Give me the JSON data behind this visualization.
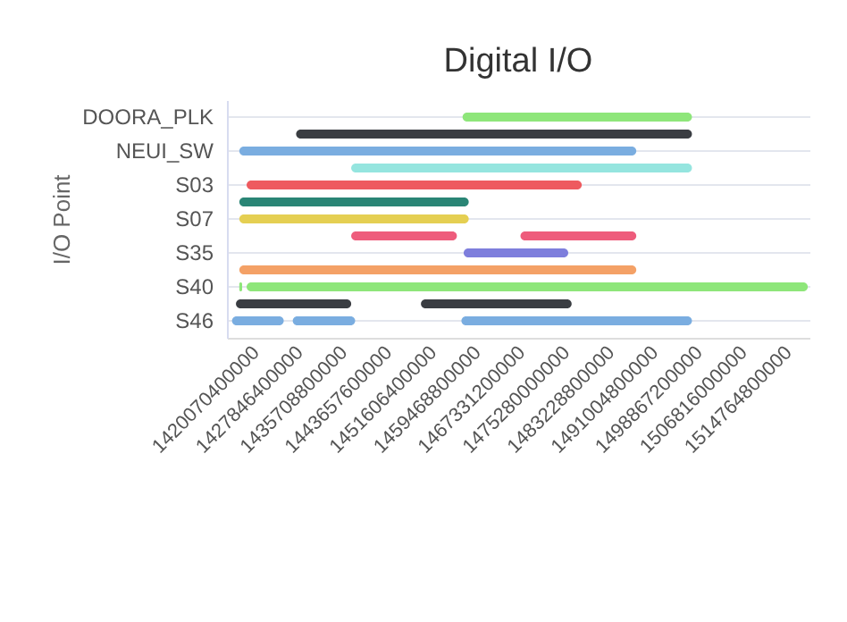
{
  "chart_data": {
    "type": "bar",
    "orientation": "horizontal",
    "title": "Digital I/O",
    "ylabel": "I/O Point",
    "categories": [
      "DOORA_PLK",
      null,
      "NEUI_SW",
      null,
      "S03",
      null,
      "S07",
      null,
      "S35",
      null,
      "S40",
      null,
      "S46"
    ],
    "series": [
      {
        "base": [
          1458200000000,
          1428600000000,
          1418500000000,
          1438400000000,
          1419800000000,
          1418500000000,
          1418500000000,
          1438400000000,
          1458400000000,
          1418500000000,
          1418500000000,
          1417900000000,
          1417200000000
        ],
        "values": [
          40800000000,
          70400000000,
          70600000000,
          60600000000,
          59600000000,
          40800000000,
          40800000000,
          18800000000,
          18600000000,
          70600000000,
          500000000,
          20500000000,
          9200000000
        ],
        "colors": [
          "#8ee67a",
          "#3a3d42",
          "#7aade0",
          "#95e5df",
          "#ee5a5f",
          "#2a8575",
          "#e5cf52",
          "#ee5c7c",
          "#7e7edc",
          "#f4a166",
          "#8ee67a",
          "#3a3d42",
          "#7aade0"
        ]
      },
      {
        "base": [
          null,
          null,
          null,
          null,
          null,
          null,
          null,
          1468500000000,
          null,
          null,
          1419800000000,
          1450800000000,
          1428000000000
        ],
        "values": [
          null,
          null,
          null,
          null,
          null,
          null,
          null,
          20600000000,
          null,
          null,
          99800000000,
          26800000000,
          11100000000
        ],
        "colors": [
          "#8ee67a",
          "#3a3d42",
          "#7aade0",
          "#95e5df",
          "#ee5a5f",
          "#2a8575",
          "#e5cf52",
          "#ee5c7c",
          "#7e7edc",
          "#f4a166",
          "#8ee67a",
          "#3a3d42",
          "#7aade0"
        ]
      },
      {
        "base": [
          null,
          null,
          null,
          null,
          null,
          null,
          null,
          null,
          null,
          null,
          null,
          null,
          1458000000000
        ],
        "values": [
          null,
          null,
          null,
          null,
          null,
          null,
          null,
          null,
          null,
          null,
          null,
          null,
          41000000000
        ],
        "colors": [
          "#8ee67a",
          "#3a3d42",
          "#7aade0",
          "#95e5df",
          "#ee5a5f",
          "#2a8575",
          "#e5cf52",
          "#ee5c7c",
          "#7e7edc",
          "#f4a166",
          "#8ee67a",
          "#3a3d42",
          "#7aade0"
        ]
      }
    ],
    "xlim": [
      1416300000000,
      1519900000000
    ],
    "xticks": [
      1420070400000,
      1427846400000,
      1435708800000,
      1443657600000,
      1451606400000,
      1459468800000,
      1467331200000,
      1475280000000,
      1483228800000,
      1491004800000,
      1498867200000,
      1506816000000,
      1514764800000
    ],
    "grid": "y"
  }
}
